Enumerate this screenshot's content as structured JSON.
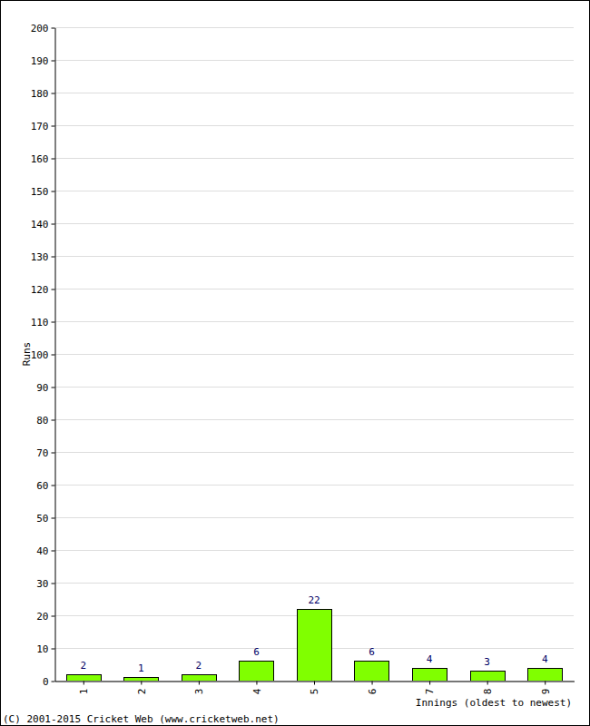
{
  "chart_data": {
    "type": "bar",
    "categories": [
      "1",
      "2",
      "3",
      "4",
      "5",
      "6",
      "7",
      "8",
      "9"
    ],
    "values": [
      2,
      1,
      2,
      6,
      22,
      6,
      4,
      3,
      4
    ],
    "color": "#80ff00",
    "x_label": "Innings (oldest to newest)",
    "y_label": "Runs",
    "annotation": "(C) 2001-2015 Cricket Web (www.cricketweb.net)",
    "ylim": [
      0,
      200
    ],
    "yticks": [
      0,
      10,
      20,
      30,
      40,
      50,
      60,
      70,
      80,
      90,
      100,
      110,
      120,
      130,
      140,
      150,
      160,
      170,
      180,
      190,
      200
    ],
    "grid": true,
    "data_labels": true
  }
}
